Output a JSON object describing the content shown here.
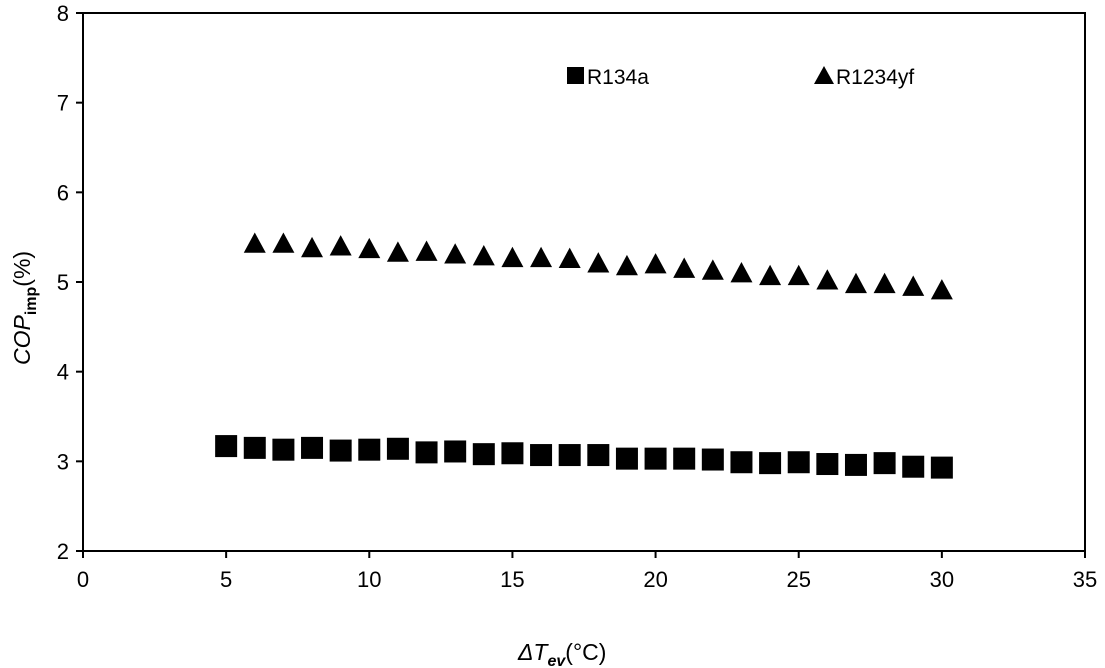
{
  "chart_data": {
    "type": "scatter",
    "xlim": [
      0,
      35
    ],
    "ylim": [
      2,
      8
    ],
    "x_ticks": [
      0,
      5,
      10,
      15,
      20,
      25,
      30,
      35
    ],
    "y_ticks": [
      2,
      3,
      4,
      5,
      6,
      7,
      8
    ],
    "x_tick_labels": [
      "0",
      "5",
      "10",
      "15",
      "20",
      "25",
      "30",
      "35"
    ],
    "y_tick_labels": [
      "2",
      "3",
      "4",
      "5",
      "6",
      "7",
      "8"
    ],
    "xlabel": {
      "symbol": "ΔT",
      "subscript": "ev",
      "unit": "(°C)"
    },
    "ylabel": {
      "symbol": "COP",
      "subscript": "imp",
      "unit": "(%)"
    },
    "grid": false,
    "legend_position": "top-right",
    "series": [
      {
        "name": "R134a",
        "marker": "square",
        "color": "#000000",
        "x": [
          5,
          6,
          7,
          8,
          9,
          10,
          11,
          12,
          13,
          14,
          15,
          16,
          17,
          18,
          19,
          20,
          21,
          22,
          23,
          24,
          25,
          26,
          27,
          28,
          29,
          30
        ],
        "y": [
          3.17,
          3.15,
          3.13,
          3.15,
          3.12,
          3.13,
          3.14,
          3.1,
          3.11,
          3.08,
          3.09,
          3.07,
          3.07,
          3.07,
          3.03,
          3.03,
          3.03,
          3.02,
          2.99,
          2.98,
          2.99,
          2.97,
          2.96,
          2.98,
          2.94,
          2.93
        ]
      },
      {
        "name": "R1234yf",
        "marker": "triangle",
        "color": "#000000",
        "x": [
          6,
          7,
          8,
          9,
          10,
          11,
          12,
          13,
          14,
          15,
          16,
          17,
          18,
          19,
          20,
          21,
          22,
          23,
          24,
          25,
          26,
          27,
          28,
          29,
          30
        ],
        "y": [
          5.43,
          5.43,
          5.38,
          5.4,
          5.37,
          5.33,
          5.34,
          5.31,
          5.29,
          5.27,
          5.27,
          5.26,
          5.21,
          5.18,
          5.2,
          5.15,
          5.13,
          5.1,
          5.07,
          5.07,
          5.02,
          4.98,
          4.98,
          4.95,
          4.91
        ]
      }
    ]
  }
}
